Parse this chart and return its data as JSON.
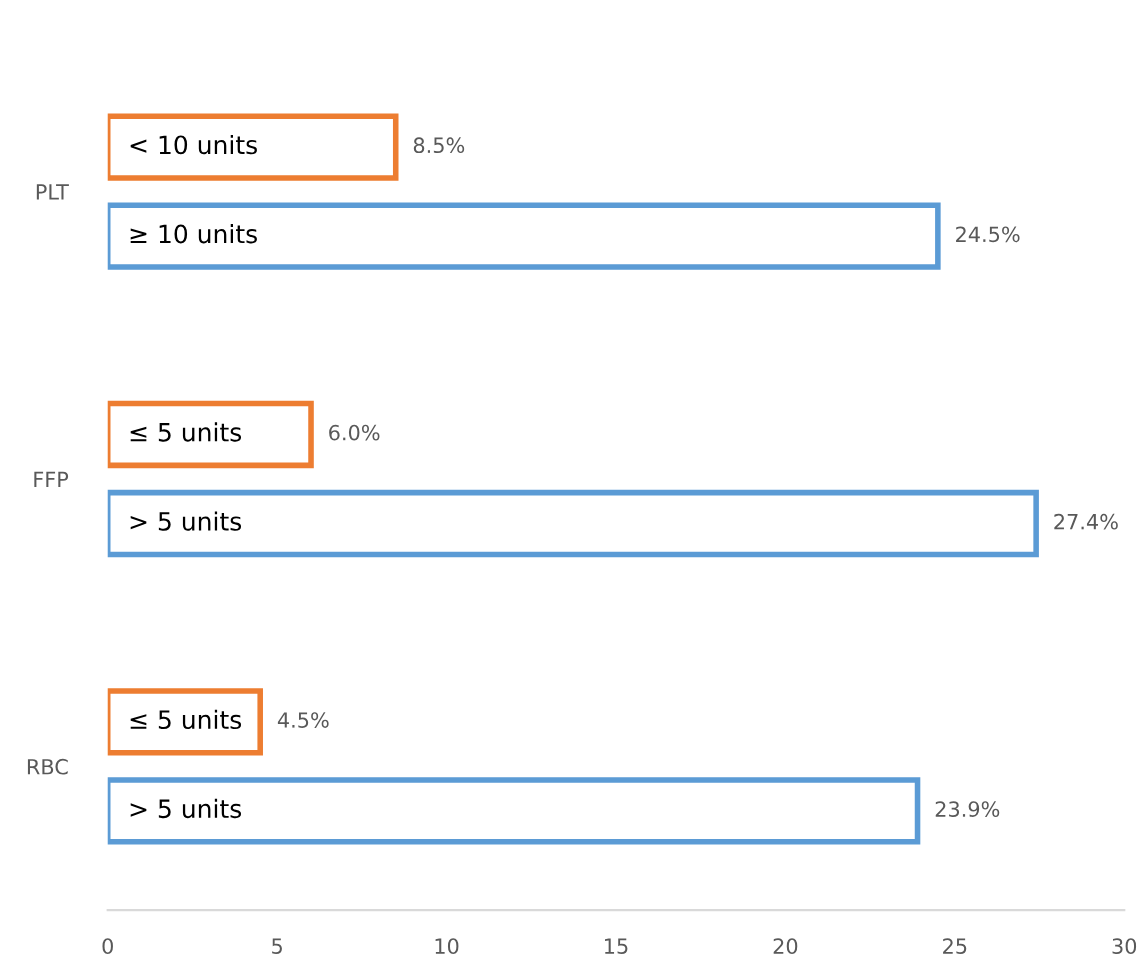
{
  "chart_data": {
    "type": "bar",
    "orientation": "horizontal",
    "categories": [
      "PLT",
      "FFP",
      "RBC"
    ],
    "series": [
      {
        "color": "#ed7d31",
        "values": [
          8.5,
          6.0,
          4.5
        ],
        "value_labels": [
          "8.5%",
          "6.0%",
          "4.5%"
        ]
      },
      {
        "color": "#5b9bd5",
        "values": [
          24.5,
          27.4,
          23.9
        ],
        "value_labels": [
          "24.5%",
          "27.4%",
          "23.9%"
        ]
      }
    ],
    "annotations": [
      "< 10 units",
      "≥ 10 units",
      "≤ 5 units",
      "> 5 units",
      "≤ 5 units",
      "> 5 units"
    ],
    "xlim": [
      0,
      30
    ],
    "xticks": [
      0,
      5,
      10,
      15,
      20,
      25,
      30
    ],
    "grid": false,
    "legend": false
  }
}
